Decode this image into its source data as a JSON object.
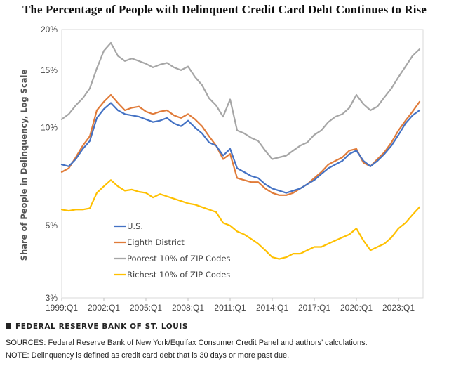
{
  "chart_data": {
    "type": "line",
    "title": "The Percentage of People with Delinquent Credit Card Debt Continues to Rise",
    "ylabel": "Share of People in Delinquency, Log Scale",
    "xlabel": "",
    "y_scale": "log",
    "ylim": [
      3,
      20
    ],
    "yticks": [
      3,
      5,
      10,
      15,
      20
    ],
    "ytick_labels": [
      "3%",
      "5%",
      "10%",
      "15%",
      "20%"
    ],
    "xlim": [
      1999.0,
      2024.75
    ],
    "xticks": [
      1999,
      2002,
      2005,
      2008,
      2011,
      2014,
      2017,
      2020,
      2023
    ],
    "xtick_labels": [
      "1999:Q1",
      "2002:Q1",
      "2005:Q1",
      "2008:Q1",
      "2011:Q1",
      "2014:Q1",
      "2017:Q1",
      "2020:Q1",
      "2023:Q1"
    ],
    "legend_position": "lower-left",
    "series": [
      {
        "name": "U.S.",
        "color": "#4472C4",
        "x": [
          1999.0,
          1999.5,
          2000.0,
          2000.5,
          2001.0,
          2001.5,
          2002.0,
          2002.5,
          2003.0,
          2003.5,
          2004.0,
          2004.5,
          2005.0,
          2005.5,
          2006.0,
          2006.5,
          2007.0,
          2007.5,
          2008.0,
          2008.5,
          2009.0,
          2009.5,
          2010.0,
          2010.5,
          2011.0,
          2011.5,
          2012.0,
          2012.5,
          2013.0,
          2013.5,
          2014.0,
          2014.5,
          2015.0,
          2015.5,
          2016.0,
          2016.5,
          2017.0,
          2017.5,
          2018.0,
          2018.5,
          2019.0,
          2019.5,
          2020.0,
          2020.5,
          2021.0,
          2021.5,
          2022.0,
          2022.5,
          2023.0,
          2023.5,
          2024.0,
          2024.5
        ],
        "values": [
          7.7,
          7.6,
          8.0,
          8.6,
          9.1,
          10.7,
          11.4,
          11.9,
          11.3,
          11.0,
          10.9,
          10.8,
          10.6,
          10.4,
          10.5,
          10.7,
          10.3,
          10.1,
          10.5,
          10.0,
          9.6,
          9.0,
          8.8,
          8.2,
          8.6,
          7.5,
          7.3,
          7.1,
          7.0,
          6.7,
          6.5,
          6.4,
          6.3,
          6.4,
          6.5,
          6.7,
          6.9,
          7.2,
          7.5,
          7.7,
          7.9,
          8.3,
          8.5,
          7.9,
          7.6,
          7.9,
          8.3,
          8.8,
          9.5,
          10.3,
          10.9,
          11.3
        ]
      },
      {
        "name": "Eighth District",
        "color": "#E07B39",
        "x": [
          1999.0,
          1999.5,
          2000.0,
          2000.5,
          2001.0,
          2001.5,
          2002.0,
          2002.5,
          2003.0,
          2003.5,
          2004.0,
          2004.5,
          2005.0,
          2005.5,
          2006.0,
          2006.5,
          2007.0,
          2007.5,
          2008.0,
          2008.5,
          2009.0,
          2009.5,
          2010.0,
          2010.5,
          2011.0,
          2011.5,
          2012.0,
          2012.5,
          2013.0,
          2013.5,
          2014.0,
          2014.5,
          2015.0,
          2015.5,
          2016.0,
          2016.5,
          2017.0,
          2017.5,
          2018.0,
          2018.5,
          2019.0,
          2019.5,
          2020.0,
          2020.5,
          2021.0,
          2021.5,
          2022.0,
          2022.5,
          2023.0,
          2023.5,
          2024.0,
          2024.5
        ],
        "values": [
          7.3,
          7.5,
          8.1,
          8.8,
          9.4,
          11.3,
          12.0,
          12.6,
          11.9,
          11.3,
          11.5,
          11.6,
          11.2,
          11.0,
          11.2,
          11.3,
          10.9,
          10.7,
          11.0,
          10.6,
          10.1,
          9.4,
          8.8,
          8.0,
          8.3,
          7.0,
          6.9,
          6.8,
          6.8,
          6.5,
          6.3,
          6.2,
          6.2,
          6.3,
          6.5,
          6.7,
          7.0,
          7.3,
          7.7,
          7.9,
          8.1,
          8.5,
          8.6,
          7.8,
          7.6,
          8.0,
          8.4,
          9.0,
          9.8,
          10.5,
          11.2,
          12.0
        ]
      },
      {
        "name": "Poorest 10% of ZIP Codes",
        "color": "#A6A6A6",
        "x": [
          1999.0,
          1999.5,
          2000.0,
          2000.5,
          2001.0,
          2001.5,
          2002.0,
          2002.5,
          2003.0,
          2003.5,
          2004.0,
          2004.5,
          2005.0,
          2005.5,
          2006.0,
          2006.5,
          2007.0,
          2007.5,
          2008.0,
          2008.5,
          2009.0,
          2009.5,
          2010.0,
          2010.5,
          2011.0,
          2011.5,
          2012.0,
          2012.5,
          2013.0,
          2013.5,
          2014.0,
          2014.5,
          2015.0,
          2015.5,
          2016.0,
          2016.5,
          2017.0,
          2017.5,
          2018.0,
          2018.5,
          2019.0,
          2019.5,
          2020.0,
          2020.5,
          2021.0,
          2021.5,
          2022.0,
          2022.5,
          2023.0,
          2023.5,
          2024.0,
          2024.5
        ],
        "values": [
          10.6,
          11.0,
          11.7,
          12.3,
          13.2,
          15.2,
          17.2,
          18.2,
          16.6,
          16.0,
          16.3,
          16.0,
          15.7,
          15.3,
          15.6,
          15.8,
          15.3,
          15.0,
          15.4,
          14.3,
          13.5,
          12.3,
          11.7,
          10.8,
          12.2,
          9.8,
          9.6,
          9.3,
          9.1,
          8.5,
          8.0,
          8.1,
          8.2,
          8.5,
          8.8,
          9.0,
          9.5,
          9.8,
          10.4,
          10.8,
          11.0,
          11.5,
          12.6,
          11.8,
          11.3,
          11.6,
          12.4,
          13.2,
          14.3,
          15.4,
          16.6,
          17.4
        ]
      },
      {
        "name": "Richest 10% of ZIP Codes",
        "color": "#FFC000",
        "x": [
          1999.0,
          1999.5,
          2000.0,
          2000.5,
          2001.0,
          2001.5,
          2002.0,
          2002.5,
          2003.0,
          2003.5,
          2004.0,
          2004.5,
          2005.0,
          2005.5,
          2006.0,
          2006.5,
          2007.0,
          2007.5,
          2008.0,
          2008.5,
          2009.0,
          2009.5,
          2010.0,
          2010.5,
          2011.0,
          2011.5,
          2012.0,
          2012.5,
          2013.0,
          2013.5,
          2014.0,
          2014.5,
          2015.0,
          2015.5,
          2016.0,
          2016.5,
          2017.0,
          2017.5,
          2018.0,
          2018.5,
          2019.0,
          2019.5,
          2020.0,
          2020.5,
          2021.0,
          2021.5,
          2022.0,
          2022.5,
          2023.0,
          2023.5,
          2024.0,
          2024.5
        ],
        "values": [
          5.6,
          5.55,
          5.6,
          5.6,
          5.65,
          6.3,
          6.6,
          6.9,
          6.6,
          6.4,
          6.45,
          6.35,
          6.3,
          6.1,
          6.25,
          6.15,
          6.05,
          5.95,
          5.85,
          5.8,
          5.7,
          5.6,
          5.5,
          5.1,
          5.0,
          4.8,
          4.7,
          4.55,
          4.4,
          4.2,
          4.0,
          3.95,
          4.0,
          4.1,
          4.1,
          4.2,
          4.3,
          4.3,
          4.4,
          4.5,
          4.6,
          4.7,
          4.9,
          4.5,
          4.2,
          4.3,
          4.4,
          4.6,
          4.9,
          5.1,
          5.4,
          5.7
        ]
      }
    ]
  },
  "footer": {
    "org": "FEDERAL RESERVE BANK OF ST. LOUIS",
    "sources": "SOURCES: Federal Reserve Bank of New York/Equifax Consumer Credit Panel and authors’ calculations.",
    "note": "NOTE: Delinquency is defined as credit card debt that is 30 days or more past due."
  }
}
